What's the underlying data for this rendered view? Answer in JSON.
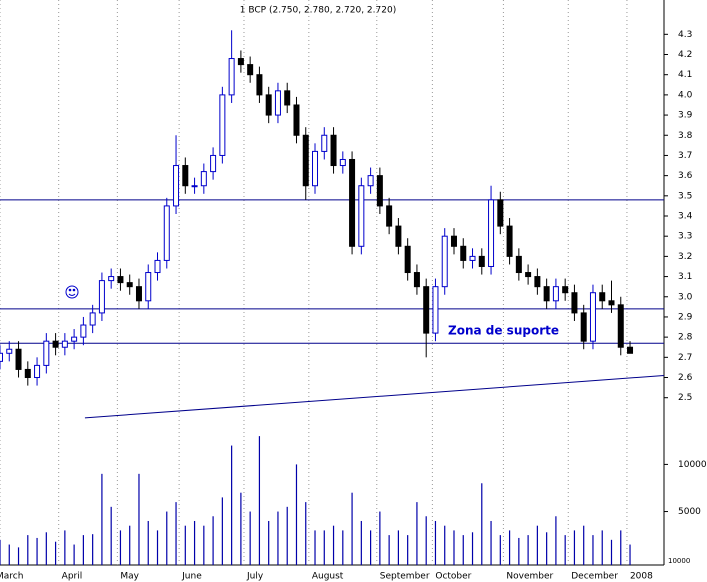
{
  "chart_data": {
    "type": "candlestick",
    "title": "1 BCP (2.750, 2.780, 2.720, 2.720)",
    "annotation": "Zona de suporte",
    "volume_unit_label": "10000",
    "color_up": "#0000cc",
    "color_down": "#000000",
    "line_color": "#00008b",
    "volume_color": "#0000aa",
    "x": [
      0,
      3,
      6,
      9,
      12,
      15,
      18,
      21,
      24,
      27,
      30,
      33,
      36,
      39,
      42,
      45,
      48,
      51,
      54,
      57,
      60,
      63,
      66,
      69,
      72,
      75,
      78,
      81,
      84,
      87,
      90,
      93,
      96,
      99,
      102,
      105,
      108,
      111,
      114,
      117,
      120,
      123,
      126,
      129,
      132,
      135,
      138,
      141,
      144,
      147,
      150,
      153,
      156,
      159,
      162,
      165,
      168,
      171,
      174,
      177,
      180,
      183,
      186,
      189,
      192,
      195,
      198,
      201,
      204
    ],
    "open": [
      2.68,
      2.72,
      2.74,
      2.64,
      2.6,
      2.66,
      2.78,
      2.75,
      2.78,
      2.8,
      2.86,
      2.92,
      3.08,
      3.1,
      3.07,
      3.05,
      2.98,
      3.12,
      3.18,
      3.45,
      3.65,
      3.55,
      3.55,
      3.62,
      3.7,
      4.0,
      4.18,
      4.15,
      4.1,
      4.0,
      3.9,
      4.02,
      3.95,
      3.8,
      3.55,
      3.72,
      3.8,
      3.65,
      3.68,
      3.25,
      3.55,
      3.6,
      3.45,
      3.35,
      3.25,
      3.12,
      3.05,
      2.82,
      3.05,
      3.3,
      3.25,
      3.18,
      3.2,
      3.15,
      3.48,
      3.35,
      3.2,
      3.12,
      3.1,
      3.05,
      2.98,
      3.05,
      3.02,
      2.92,
      2.78,
      3.02,
      2.98,
      2.96,
      2.75
    ],
    "high": [
      2.76,
      2.78,
      2.78,
      2.68,
      2.7,
      2.82,
      2.82,
      2.82,
      2.84,
      2.9,
      2.96,
      3.12,
      3.14,
      3.14,
      3.11,
      3.09,
      3.16,
      3.22,
      3.49,
      3.8,
      3.69,
      3.59,
      3.66,
      3.74,
      4.04,
      4.32,
      4.22,
      4.19,
      4.14,
      4.04,
      4.06,
      4.06,
      3.99,
      3.84,
      3.76,
      3.84,
      3.84,
      3.72,
      3.72,
      3.59,
      3.64,
      3.64,
      3.49,
      3.39,
      3.29,
      3.16,
      3.09,
      3.09,
      3.34,
      3.34,
      3.29,
      3.24,
      3.24,
      3.55,
      3.52,
      3.39,
      3.24,
      3.16,
      3.14,
      3.09,
      3.09,
      3.09,
      3.06,
      2.96,
      3.06,
      3.06,
      3.08,
      3.0,
      2.78
    ],
    "low": [
      2.64,
      2.68,
      2.6,
      2.56,
      2.56,
      2.62,
      2.71,
      2.71,
      2.74,
      2.76,
      2.82,
      2.88,
      3.04,
      3.03,
      3.01,
      2.94,
      2.94,
      3.08,
      3.14,
      3.41,
      3.51,
      3.51,
      3.51,
      3.58,
      3.66,
      3.96,
      4.11,
      4.06,
      3.96,
      3.86,
      3.86,
      3.91,
      3.76,
      3.48,
      3.51,
      3.68,
      3.61,
      3.61,
      3.21,
      3.21,
      3.51,
      3.41,
      3.31,
      3.21,
      3.08,
      3.01,
      2.7,
      2.78,
      3.01,
      3.21,
      3.14,
      3.14,
      3.11,
      3.11,
      3.31,
      3.16,
      3.08,
      3.06,
      3.01,
      2.94,
      2.94,
      2.98,
      2.88,
      2.74,
      2.74,
      2.94,
      2.92,
      2.71,
      2.72
    ],
    "close": [
      2.72,
      2.74,
      2.64,
      2.6,
      2.66,
      2.78,
      2.75,
      2.78,
      2.8,
      2.86,
      2.92,
      3.08,
      3.1,
      3.07,
      3.05,
      2.98,
      3.12,
      3.18,
      3.45,
      3.65,
      3.55,
      3.55,
      3.62,
      3.7,
      4.0,
      4.18,
      4.15,
      4.1,
      4.0,
      3.9,
      4.02,
      3.95,
      3.8,
      3.55,
      3.72,
      3.8,
      3.65,
      3.68,
      3.25,
      3.55,
      3.6,
      3.45,
      3.35,
      3.25,
      3.12,
      3.05,
      2.82,
      3.05,
      3.3,
      3.25,
      3.18,
      3.2,
      3.15,
      3.48,
      3.35,
      3.2,
      3.12,
      3.1,
      3.05,
      2.98,
      3.05,
      3.02,
      2.92,
      2.78,
      3.02,
      2.98,
      2.96,
      2.75,
      2.72
    ],
    "volume": [
      2000,
      1500,
      1200,
      2500,
      2200,
      2800,
      1800,
      3000,
      1500,
      2500,
      2600,
      9000,
      5500,
      3000,
      3500,
      9000,
      4000,
      3000,
      5000,
      6000,
      3500,
      4000,
      3500,
      4500,
      6500,
      12000,
      7000,
      5000,
      13000,
      4000,
      5000,
      5500,
      10000,
      6000,
      3000,
      3000,
      3500,
      3000,
      7000,
      4000,
      3000,
      5000,
      2500,
      3000,
      2500,
      6000,
      4500,
      4000,
      3500,
      3000,
      2500,
      2800,
      8000,
      4000,
      2500,
      3000,
      2200,
      2500,
      3500,
      2800,
      4500,
      2500,
      3000,
      3500,
      2500,
      3000,
      2000,
      3000,
      1500
    ],
    "xlim": [
      0,
      215
    ],
    "xticks": [
      {
        "value": 0,
        "label": "March"
      },
      {
        "value": 19,
        "label": "April"
      },
      {
        "value": 38,
        "label": "May"
      },
      {
        "value": 58,
        "label": "June"
      },
      {
        "value": 79,
        "label": "July"
      },
      {
        "value": 100,
        "label": "August"
      },
      {
        "value": 122,
        "label": "September"
      },
      {
        "value": 140,
        "label": "October"
      },
      {
        "value": 163,
        "label": "November"
      },
      {
        "value": 184,
        "label": "December"
      },
      {
        "value": 203,
        "label": "2008"
      }
    ],
    "ylim": [
      2.34,
      4.47
    ],
    "yticks": [
      2.5,
      2.6,
      2.7,
      2.8,
      2.9,
      {
        "value": 3,
        "label": "3.0"
      },
      3.1,
      3.2,
      3.3,
      3.4,
      3.5,
      3.6,
      3.7,
      3.8,
      3.9,
      {
        "value": 4,
        "label": "4.0"
      },
      4.1,
      4.2,
      4.3
    ],
    "y2lim": [
      -670,
      13650
    ],
    "y2ticks": [
      5000,
      10000
    ],
    "hlines": [
      3.48,
      2.94,
      2.77
    ],
    "trendline": {
      "x": [
        27.5,
        215
      ],
      "y": [
        2.4,
        2.61
      ]
    }
  }
}
